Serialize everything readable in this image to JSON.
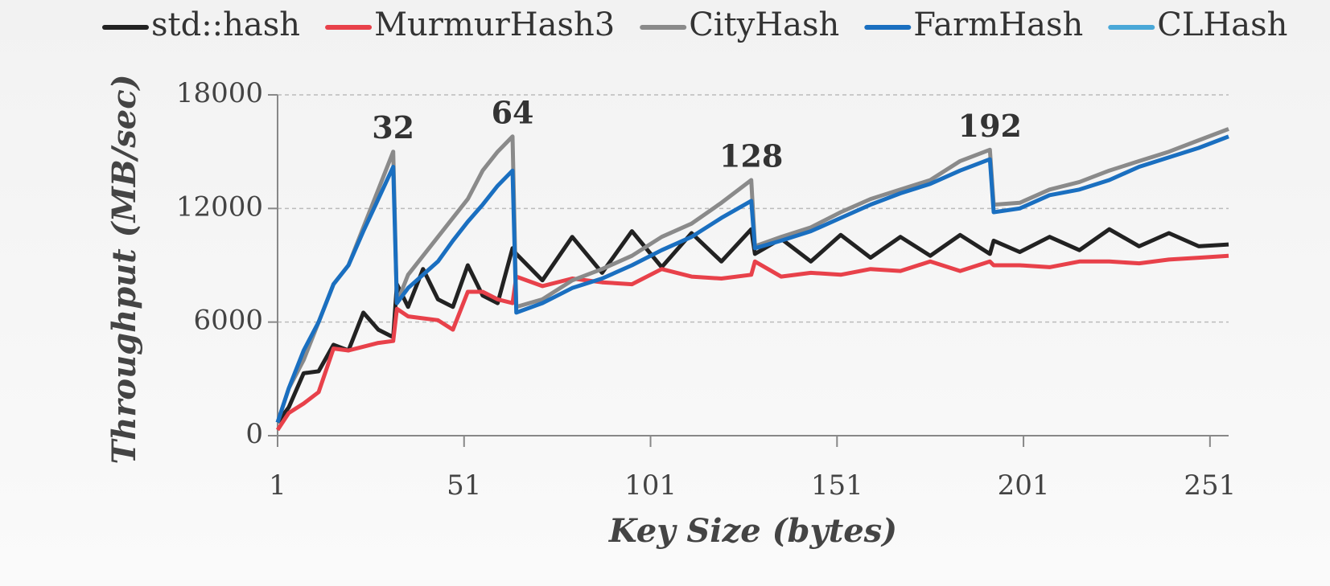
{
  "chart_data": {
    "type": "line",
    "x_label": "Key Size (bytes)",
    "y_label": "Throughput (MB/sec)",
    "x": [
      1,
      4,
      8,
      12,
      16,
      20,
      24,
      28,
      32,
      33,
      36,
      40,
      44,
      48,
      52,
      56,
      60,
      64,
      65,
      72,
      80,
      88,
      96,
      104,
      112,
      120,
      128,
      129,
      136,
      144,
      152,
      160,
      168,
      176,
      184,
      192,
      193,
      200,
      208,
      216,
      224,
      232,
      240,
      248,
      256
    ],
    "series": [
      {
        "name": "std::hash",
        "color": "#222222",
        "values": [
          700,
          1500,
          3300,
          3400,
          4800,
          4500,
          6500,
          5600,
          5200,
          8000,
          6800,
          8800,
          7200,
          6800,
          9000,
          7400,
          7000,
          9900,
          9600,
          8200,
          10500,
          8600,
          10800,
          8900,
          10700,
          9200,
          10900,
          9600,
          10400,
          9200,
          10600,
          9400,
          10500,
          9500,
          10600,
          9600,
          10300,
          9700,
          10500,
          9800,
          10900,
          10000,
          10700,
          10000,
          10100
        ]
      },
      {
        "name": "MurmurHash3",
        "color": "#e8414a",
        "values": [
          300,
          1200,
          1700,
          2300,
          4600,
          4500,
          4700,
          4900,
          5000,
          6700,
          6300,
          6200,
          6100,
          5600,
          7600,
          7600,
          7200,
          7000,
          8400,
          7900,
          8300,
          8100,
          8000,
          8800,
          8400,
          8300,
          8500,
          9200,
          8400,
          8600,
          8500,
          8800,
          8700,
          9200,
          8700,
          9200,
          9000,
          9000,
          8900,
          9200,
          9200,
          9100,
          9300,
          9400,
          9500
        ]
      },
      {
        "name": "CityHash",
        "color": "#8a8a8a",
        "values": [
          700,
          2500,
          4000,
          6000,
          8000,
          9000,
          11000,
          13000,
          15000,
          7000,
          8500,
          9500,
          10500,
          11500,
          12500,
          14000,
          15000,
          15800,
          6800,
          7200,
          8200,
          8800,
          9500,
          10500,
          11200,
          12300,
          13500,
          10000,
          10500,
          11000,
          11800,
          12500,
          13000,
          13500,
          14500,
          15100,
          12200,
          12300,
          13000,
          13400,
          14000,
          14500,
          15000,
          15600,
          16200
        ]
      },
      {
        "name": "FarmHash",
        "color": "#1a6fc0",
        "values": [
          700,
          2500,
          4500,
          6000,
          8000,
          9000,
          10800,
          12500,
          14200,
          7000,
          7800,
          8500,
          9200,
          10300,
          11300,
          12200,
          13200,
          14000,
          6500,
          7000,
          7800,
          8300,
          9000,
          9800,
          10500,
          11500,
          12400,
          9900,
          10300,
          10800,
          11500,
          12200,
          12800,
          13300,
          14000,
          14600,
          11800,
          12000,
          12700,
          13000,
          13500,
          14200,
          14700,
          15200,
          15800
        ]
      },
      {
        "name": "CLHash",
        "color": "#4aa8d8",
        "values": [
          null,
          null,
          null,
          null,
          null,
          null,
          null,
          null,
          null,
          null,
          null,
          null,
          null,
          null,
          null,
          null,
          null,
          null,
          null,
          null,
          null,
          null,
          null,
          null,
          null,
          null,
          null,
          null,
          null,
          null,
          null,
          null,
          null,
          null,
          null,
          null,
          null,
          null,
          null,
          null,
          null,
          null,
          null,
          null,
          null
        ]
      }
    ],
    "annotations": [
      32,
      64,
      128,
      192
    ],
    "xlim": [
      1,
      256
    ],
    "xticks": [
      1,
      51,
      101,
      151,
      201,
      251
    ],
    "ylim": [
      0,
      18000
    ],
    "yticks": [
      0,
      6000,
      12000,
      18000
    ],
    "grid": true
  }
}
